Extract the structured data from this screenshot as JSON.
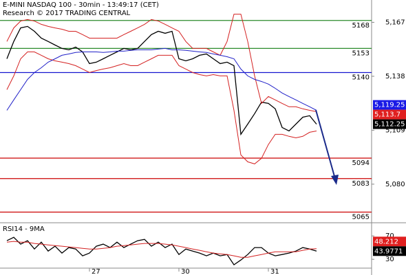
{
  "chart_data": [
    {
      "type": "line",
      "title": "E-MINI NASDAQ 100 - 30min - 13:49:17 (CET)",
      "subtitle": "Research © 2017 TRADING CENTRAL",
      "x": [
        0,
        1,
        2,
        3,
        4,
        5,
        6,
        7,
        8,
        9,
        10,
        11,
        12,
        13,
        14,
        15,
        16,
        17,
        18,
        19,
        20,
        21,
        22,
        23,
        24,
        25,
        26,
        27,
        28,
        29,
        30,
        31,
        32,
        33,
        34,
        35,
        36,
        37,
        38,
        39,
        40,
        41,
        42,
        43,
        44,
        45
      ],
      "xlim": [
        -1,
        53
      ],
      "xticks": [
        {
          "value": 12,
          "label": "27"
        },
        {
          "value": 25,
          "label": "30"
        },
        {
          "value": 38,
          "label": "31"
        }
      ],
      "ylim": [
        5060,
        5179
      ],
      "yticks": [
        {
          "value": 5080,
          "label": "5,080"
        },
        {
          "value": 5109,
          "label": "5,109"
        },
        {
          "value": 5138,
          "label": "5,138"
        },
        {
          "value": 5167,
          "label": "5,167"
        }
      ],
      "series": [
        {
          "color": "#000000",
          "values": [
            5147.4,
            5156.7,
            5164,
            5164.8,
            5162.2,
            5158.5,
            5156.7,
            5154.8,
            5153,
            5152.2,
            5153.7,
            5151.1,
            5144.8,
            5145.6,
            5147.4,
            5149.3,
            5151.1,
            5153,
            5152.2,
            5153,
            5156.7,
            5160.4,
            5162.2,
            5161.1,
            5162.2,
            5147.4,
            5146.3,
            5147.4,
            5149.3,
            5150,
            5147.4,
            5144.8,
            5145.6,
            5143.7,
            5106.8,
            5112.3,
            5117.9,
            5124.1,
            5123.4,
            5120.5,
            5110.5,
            5108.6,
            5112.3,
            5116,
            5116.8,
            5112.25
          ]
        },
        {
          "color": "#d42020",
          "values": [
            5156.7,
            5164,
            5167.7,
            5168.5,
            5167.7,
            5165.9,
            5164.8,
            5164,
            5163.3,
            5162.2,
            5162.2,
            5160.4,
            5158.5,
            5158.5,
            5158.5,
            5158.5,
            5158.5,
            5160.4,
            5162.2,
            5164,
            5165.9,
            5168.5,
            5167.7,
            5165.9,
            5164,
            5162.2,
            5156.7,
            5153,
            5153,
            5153,
            5151.1,
            5149.3,
            5156.7,
            5171.4,
            5171.4,
            5156.7,
            5138.2,
            5123.4,
            5127.1,
            5125.3,
            5123.4,
            5121.6,
            5121.6,
            5120.5,
            5119.7,
            5119
          ]
        },
        {
          "color": "#d42020",
          "values": [
            5130.8,
            5138.2,
            5147.4,
            5151.1,
            5151.1,
            5149.3,
            5147.4,
            5146.3,
            5145.6,
            5144.8,
            5143.7,
            5141.9,
            5140,
            5141.1,
            5141.9,
            5142.6,
            5143.7,
            5144.8,
            5143.7,
            5143.7,
            5145.6,
            5147.4,
            5149.3,
            5149.3,
            5149.3,
            5143.7,
            5141.9,
            5140,
            5138.9,
            5138.2,
            5138.9,
            5138.2,
            5138.2,
            5119.7,
            5095.7,
            5092,
            5090.9,
            5093.9,
            5101.3,
            5106.8,
            5106.8,
            5105.7,
            5104.9,
            5105.7,
            5107.9,
            5108.6
          ]
        },
        {
          "color": "#2020c8",
          "values": [
            5119.7,
            5125.3,
            5130.8,
            5136.3,
            5140,
            5142.6,
            5145.6,
            5147.4,
            5149.3,
            5150,
            5150.8,
            5151.1,
            5151.1,
            5151.1,
            5150.8,
            5151.1,
            5151.5,
            5151.5,
            5151.9,
            5152.2,
            5152.2,
            5152.2,
            5152.6,
            5153,
            5152.2,
            5152.2,
            5151.9,
            5151.5,
            5151.1,
            5150.8,
            5150,
            5149.3,
            5148.5,
            5147.4,
            5141.9,
            5138.2,
            5136.3,
            5135.2,
            5133.8,
            5131.5,
            5129,
            5127.1,
            5125.3,
            5123.4,
            5121.6,
            5119.7
          ]
        }
      ],
      "levels": [
        {
          "value": 5168,
          "color": "#2a8a2a"
        },
        {
          "value": 5153,
          "color": "#2a8a2a"
        },
        {
          "value": 5140,
          "color": "#1515d0"
        },
        {
          "value": 5094,
          "color": "#cc0000"
        },
        {
          "value": 5083,
          "color": "#cc0000"
        },
        {
          "value": 5065,
          "color": "#cc0000"
        }
      ],
      "tags": [
        {
          "value": 5119.25,
          "label": "5,119.25",
          "color": "#1a1ae6"
        },
        {
          "value": 5113.7,
          "label": "5,113.7",
          "color": "#e02020"
        },
        {
          "value": 5112.25,
          "label": "5,112.25",
          "color": "#000000"
        }
      ]
    },
    {
      "type": "line",
      "title": "RSI14 - 9MA",
      "x": [
        0,
        1,
        2,
        3,
        4,
        5,
        6,
        7,
        8,
        9,
        10,
        11,
        12,
        13,
        14,
        15,
        16,
        17,
        18,
        19,
        20,
        21,
        22,
        23,
        24,
        25,
        26,
        27,
        28,
        29,
        30,
        31,
        32,
        33,
        34,
        35,
        36,
        37,
        38,
        39,
        40,
        41,
        42,
        43,
        44,
        45
      ],
      "xlim": [
        -1,
        53
      ],
      "ylim": [
        9,
        89
      ],
      "yticks": [
        30,
        70
      ],
      "series": [
        {
          "color": "#000000",
          "values": [
            61.8,
            67.6,
            55.9,
            61.8,
            47.6,
            59.4,
            44.1,
            52.4,
            40.6,
            50,
            47.6,
            35.9,
            40.6,
            52.4,
            55.9,
            50,
            59.4,
            50,
            55.9,
            61.8,
            64.1,
            52.4,
            59.4,
            50,
            55.9,
            38.2,
            47.6,
            44.1,
            40.6,
            35.9,
            40.6,
            35.9,
            38.2,
            20.6,
            28.8,
            38.2,
            50,
            50,
            40.6,
            35.9,
            38.2,
            40.6,
            44.1,
            50,
            47.6,
            44
          ]
        },
        {
          "color": "#d42020",
          "values": [
            59.4,
            60.6,
            59.4,
            59.4,
            57.1,
            55.9,
            54.7,
            53.5,
            52.4,
            51.2,
            50,
            48.8,
            47.6,
            47.6,
            48.8,
            50,
            52.4,
            53.5,
            54.7,
            55.9,
            57.1,
            57.1,
            57.1,
            55.9,
            54.7,
            52.4,
            50,
            47.6,
            45.3,
            42.9,
            40.6,
            39.4,
            38.2,
            35.9,
            33.5,
            33.5,
            35.9,
            38.2,
            40.6,
            42.9,
            42.9,
            42.9,
            42.9,
            45.3,
            47.6,
            48.2
          ]
        }
      ],
      "tags": [
        {
          "value": 48.212,
          "label": "48.212",
          "color": "#e02020"
        },
        {
          "value": 43.9771,
          "label": "43.9771",
          "color": "#000000"
        }
      ]
    }
  ]
}
